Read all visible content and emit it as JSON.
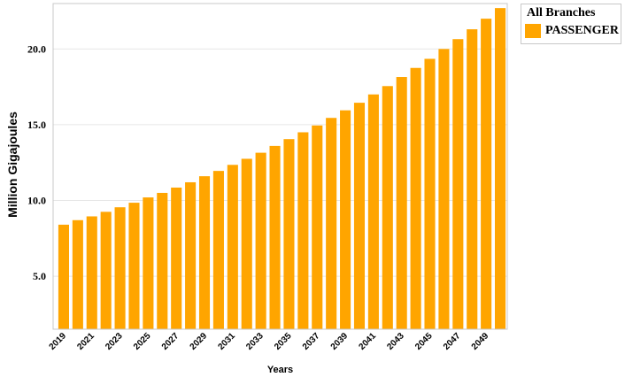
{
  "chart_data": {
    "type": "bar",
    "title": "",
    "xlabel": "Years",
    "ylabel": "Million Gigajoules",
    "categories": [
      "2019",
      "2020",
      "2021",
      "2022",
      "2023",
      "2024",
      "2025",
      "2026",
      "2027",
      "2028",
      "2029",
      "2030",
      "2031",
      "2032",
      "2033",
      "2034",
      "2035",
      "2036",
      "2037",
      "2038",
      "2039",
      "2040",
      "2041",
      "2042",
      "2043",
      "2044",
      "2045",
      "2046",
      "2047",
      "2048",
      "2049",
      "2050"
    ],
    "x_tick_labels": [
      "2019",
      "2021",
      "2023",
      "2025",
      "2027",
      "2029",
      "2031",
      "2033",
      "2035",
      "2037",
      "2039",
      "2041",
      "2043",
      "2045",
      "2047",
      "2049"
    ],
    "y_ticks": [
      "5.0",
      "10.0",
      "15.0",
      "20.0"
    ],
    "ylim": [
      1.5,
      23.0
    ],
    "grid": true,
    "legend_position": "top-right",
    "series": [
      {
        "name": "PASSENGER",
        "color": "#FFA500",
        "values": [
          8.4,
          8.7,
          8.95,
          9.25,
          9.55,
          9.85,
          10.2,
          10.5,
          10.85,
          11.2,
          11.6,
          11.95,
          12.35,
          12.75,
          13.15,
          13.6,
          14.05,
          14.5,
          14.95,
          15.45,
          15.95,
          16.45,
          17.0,
          17.55,
          18.15,
          18.75,
          19.35,
          20.0,
          20.65,
          21.3,
          22.0,
          22.7
        ]
      }
    ]
  },
  "legend": {
    "title": "All Branches",
    "items": [
      {
        "label": "PASSENGER",
        "color": "#FFA500"
      }
    ]
  }
}
